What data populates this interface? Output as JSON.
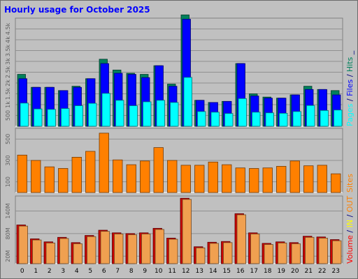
{
  "chart_data": {
    "type": "bar",
    "title": "Hourly usage for October 2025",
    "categories": [
      "0",
      "1",
      "2",
      "3",
      "4",
      "5",
      "6",
      "7",
      "8",
      "9",
      "10",
      "11",
      "12",
      "13",
      "14",
      "15",
      "16",
      "17",
      "18",
      "19",
      "20",
      "21",
      "22",
      "23"
    ],
    "panels": [
      {
        "id": "requests",
        "ylim": [
          0,
          5000
        ],
        "yticks": [
          {
            "value": 500,
            "label": "500"
          },
          {
            "value": 1000,
            "label": "1k"
          },
          {
            "value": 1500,
            "label": "1.5k"
          },
          {
            "value": 2000,
            "label": "2k"
          },
          {
            "value": 2500,
            "label": "2.5k"
          },
          {
            "value": 3000,
            "label": "3k"
          },
          {
            "value": 3500,
            "label": "3.5k"
          },
          {
            "value": 4000,
            "label": "4k"
          },
          {
            "value": 4500,
            "label": "4.5k"
          }
        ],
        "legend": [
          {
            "text": "Pages",
            "color": "#00ffff"
          },
          {
            "text": " / ",
            "color": "#000080"
          },
          {
            "text": "Files",
            "color": "#0000ff"
          },
          {
            "text": " / ",
            "color": "#000080"
          },
          {
            "text": "Hits",
            "color": "#00805c"
          },
          {
            "text": " _",
            "color": "#000080"
          }
        ],
        "series": [
          {
            "name": "Hits",
            "color": "#00805c",
            "values": [
              2400,
              1800,
              1800,
              1650,
              1850,
              2200,
              3100,
              2600,
              2450,
              2400,
              2800,
              1950,
              5150,
              1200,
              1100,
              1150,
              2900,
              1500,
              1350,
              1300,
              1450,
              1850,
              1700,
              1650
            ]
          },
          {
            "name": "Files",
            "color": "#0000ff",
            "values": [
              2200,
              1800,
              1800,
              1650,
              1800,
              2200,
              2900,
              2450,
              2400,
              2250,
              2800,
              1850,
              4950,
              1200,
              1100,
              1150,
              2900,
              1400,
              1300,
              1300,
              1450,
              1700,
              1700,
              1450
            ]
          },
          {
            "name": "Pages",
            "color": "#00ffff",
            "values": [
              1070,
              800,
              780,
              820,
              950,
              1060,
              1520,
              1200,
              950,
              1130,
              1200,
              1100,
              2260,
              680,
              650,
              590,
              1280,
              650,
              620,
              600,
              680,
              960,
              730,
              750
            ]
          }
        ]
      },
      {
        "id": "sites",
        "ylim": [
          0,
          600
        ],
        "yticks": [
          {
            "value": 100,
            "label": "100"
          },
          {
            "value": 300,
            "label": "300"
          },
          {
            "value": 500,
            "label": "500"
          }
        ],
        "legend": [
          {
            "text": "Sites",
            "color": "#ff8000"
          }
        ],
        "series": [
          {
            "name": "Sites",
            "color": "#ff8000",
            "values": [
              350,
              300,
              240,
              225,
              330,
              385,
              555,
              305,
              260,
              295,
              420,
              300,
              255,
              255,
              285,
              260,
              230,
              225,
              230,
              245,
              295,
              250,
              255,
              175
            ]
          }
        ]
      },
      {
        "id": "volume",
        "ylim": [
          0,
          180
        ],
        "yticks": [
          {
            "value": 20,
            "label": "20M"
          },
          {
            "value": 80,
            "label": "80M"
          },
          {
            "value": 140,
            "label": "140M"
          }
        ],
        "legend": [
          {
            "text": "Volume",
            "color": "#ff0000"
          },
          {
            "text": " / ",
            "color": "#000080"
          },
          {
            "text": "IN",
            "color": "#ffff00"
          },
          {
            "text": " / ",
            "color": "#000080"
          },
          {
            "text": "OUT",
            "color": "#ff8000"
          }
        ],
        "series": [
          {
            "name": "Volume",
            "color": "#cc0000",
            "values": [
              103,
              66,
              58,
              70,
              56,
              75,
              89,
              82,
              80,
              82,
              94,
              68,
              174,
              45,
              57,
              59,
              133,
              82,
              54,
              58,
              56,
              73,
              71,
              64
            ]
          },
          {
            "name": "OUT",
            "color": "#f0a050",
            "values": [
              100,
              63,
              55,
              67,
              53,
              72,
              86,
              79,
              77,
              79,
              91,
              65,
              171,
              42,
              54,
              56,
              130,
              79,
              51,
              55,
              53,
              70,
              68,
              61
            ]
          }
        ]
      }
    ]
  }
}
